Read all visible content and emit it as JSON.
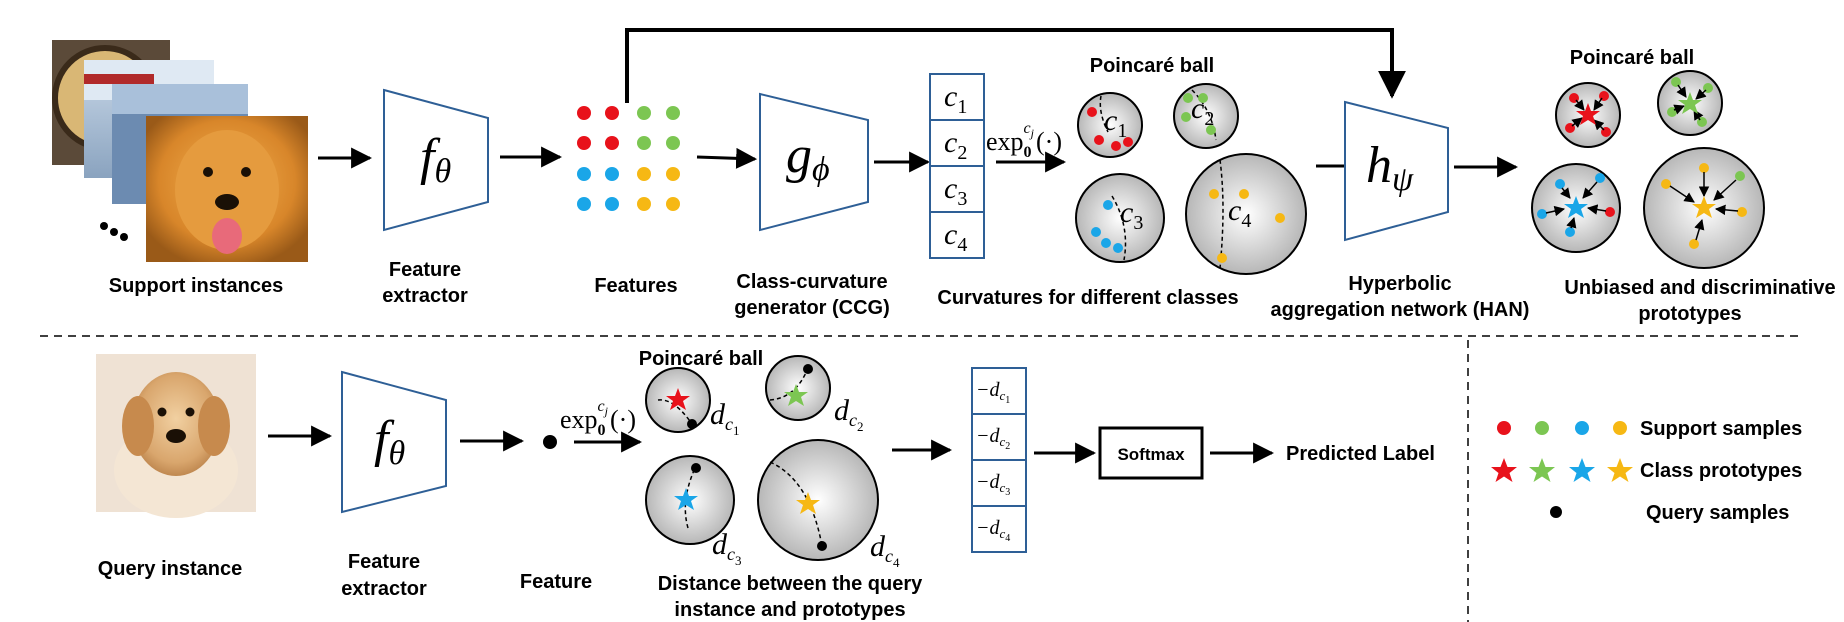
{
  "colors": {
    "red": "#e8121b",
    "green": "#7cc652",
    "blue": "#1aa6e8",
    "yellow": "#f6b814",
    "box_stroke": "#2e5f96",
    "ball_center": "#ffffff",
    "ball_edge": "#b7b7b7"
  },
  "top": {
    "support_label": "Support instances",
    "extractor_symbol": "f",
    "extractor_subscript": "θ",
    "extractor_label_1": "Feature",
    "extractor_label_2": "extractor",
    "features_label": "Features",
    "ccg_symbol": "g",
    "ccg_subscript": "ϕ",
    "ccg_label_1": "Class-curvature",
    "ccg_label_2": "generator (CCG)",
    "curvatures": [
      {
        "base": "c",
        "sub": "1"
      },
      {
        "base": "c",
        "sub": "2"
      },
      {
        "base": "c",
        "sub": "3"
      },
      {
        "base": "c",
        "sub": "4"
      }
    ],
    "exp_map": {
      "base": "exp",
      "sub": "0",
      "sup_base": "c",
      "sup_sub": "j",
      "arg": "(·)"
    },
    "poincare_label": "Poincaré ball",
    "curv_ball_labels": [
      {
        "base": "c",
        "sub": "1"
      },
      {
        "base": "c",
        "sub": "2"
      },
      {
        "base": "c",
        "sub": "3"
      },
      {
        "base": "c",
        "sub": "4"
      }
    ],
    "curvatures_label": "Curvatures for different classes",
    "han_symbol": "h",
    "han_subscript": "ψ",
    "han_label_1": "Hyperbolic",
    "han_label_2": "aggregation network (HAN)",
    "poincare_label_2": "Poincaré ball",
    "prototypes_label_1": "Unbiased and discriminative",
    "prototypes_label_2": "prototypes"
  },
  "bottom": {
    "query_label": "Query instance",
    "extractor_symbol": "f",
    "extractor_subscript": "θ",
    "extractor_label_1": "Feature",
    "extractor_label_2": "extractor",
    "feature_label": "Feature",
    "exp_map": {
      "base": "exp",
      "sub": "0",
      "sup_base": "c",
      "sup_sub": "j",
      "arg": "(·)"
    },
    "poincare_label": "Poincaré ball",
    "distance_labels": [
      {
        "base": "d",
        "sub": "c",
        "subsub": "1"
      },
      {
        "base": "d",
        "sub": "c",
        "subsub": "2"
      },
      {
        "base": "d",
        "sub": "c",
        "subsub": "3"
      },
      {
        "base": "d",
        "sub": "c",
        "subsub": "4"
      }
    ],
    "neg_distances": [
      {
        "prefix": "−d",
        "sub": "c",
        "subsub": "1"
      },
      {
        "prefix": "−d",
        "sub": "c",
        "subsub": "2"
      },
      {
        "prefix": "−d",
        "sub": "c",
        "subsub": "3"
      },
      {
        "prefix": "−d",
        "sub": "c",
        "subsub": "4"
      }
    ],
    "softmax_label": "Softmax",
    "predicted_label": "Predicted Label",
    "distance_label_1": "Distance between the query",
    "distance_label_2": "instance and prototypes"
  },
  "legend": {
    "support": "Support samples",
    "prototypes": "Class prototypes",
    "query": "Query samples"
  }
}
